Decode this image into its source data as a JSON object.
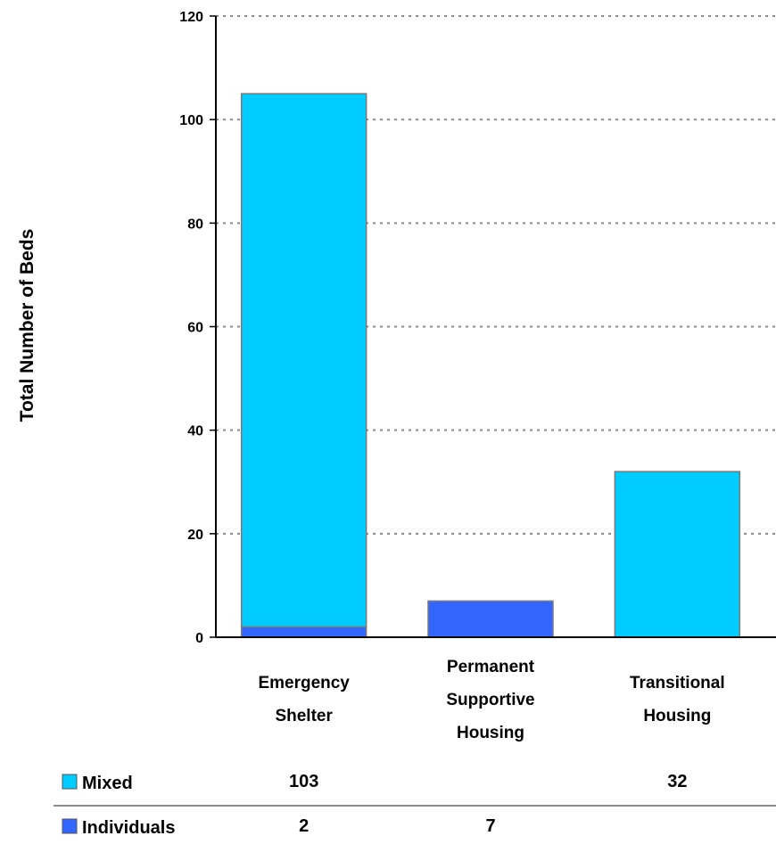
{
  "chart_data": {
    "type": "bar",
    "stacked": true,
    "categories": [
      [
        "Emergency",
        "Shelter"
      ],
      [
        "Permanent",
        "Supportive",
        "Housing"
      ],
      [
        "Transitional",
        "Housing"
      ]
    ],
    "series": [
      {
        "name": "Individuals",
        "values": [
          2,
          7,
          null
        ],
        "color": "#3366ff"
      },
      {
        "name": "Mixed",
        "values": [
          103,
          null,
          32
        ],
        "color": "#00ccff"
      }
    ],
    "ylabel": "Total Number of Beds",
    "ylim": [
      0,
      120
    ],
    "yticks": [
      0,
      20,
      40,
      60,
      80,
      100,
      120
    ],
    "grid": true,
    "table_rows": [
      {
        "name": "Mixed",
        "values": [
          "103",
          "",
          "32"
        ],
        "color": "#00ccff"
      },
      {
        "name": "Individuals",
        "values": [
          "2",
          "7",
          ""
        ],
        "color": "#3366ff"
      }
    ]
  }
}
